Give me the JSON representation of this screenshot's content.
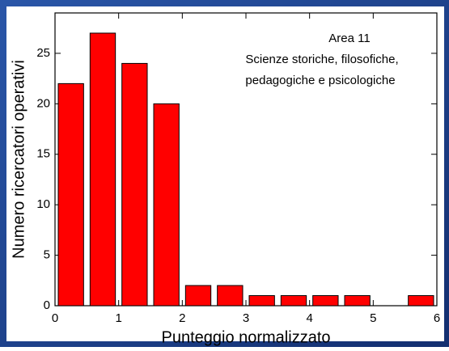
{
  "chart_data": {
    "type": "histogram",
    "annotation": [
      "Area 11",
      "Scienze storiche, filosofiche,",
      "pedagogiche e psicologiche"
    ],
    "xlabel": "Punteggio normalizzato",
    "ylabel": "Numero ricercatori operativi",
    "bins": [
      0,
      0.5,
      1,
      1.5,
      2,
      2.5,
      3,
      3.5,
      4,
      4.5,
      5,
      5.5,
      6
    ],
    "values": [
      22,
      27,
      24,
      20,
      2,
      2,
      1,
      1,
      1,
      1,
      0,
      1
    ],
    "color": "#ff0000",
    "xlim": [
      0,
      6
    ],
    "xticks": [
      0,
      1,
      2,
      3,
      4,
      5,
      6
    ],
    "ylim": [
      0,
      29
    ],
    "yticks": [
      0,
      5,
      10,
      15,
      20,
      25
    ]
  }
}
